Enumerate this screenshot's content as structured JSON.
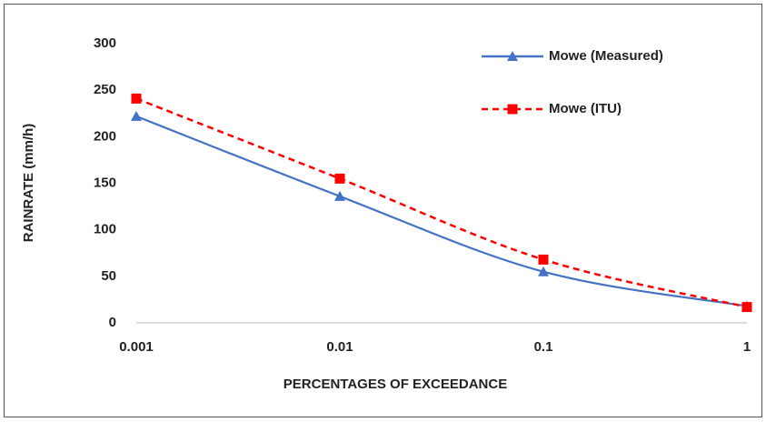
{
  "chart_data": {
    "type": "line",
    "x_label": "PERCENTAGES OF EXCEEDANCE",
    "y_label": "RAINRATE (mm/h)",
    "x": [
      0.001,
      0.01,
      0.1,
      1
    ],
    "xscale": "log",
    "xlim": [
      0.001,
      1
    ],
    "xticks": [
      0.001,
      0.01,
      0.1,
      1
    ],
    "ylim": [
      0,
      300
    ],
    "yticks": [
      0,
      50,
      100,
      150,
      200,
      250,
      300
    ],
    "grid": false,
    "legend": "upper right",
    "series": [
      {
        "name": "Mowe (Measured)",
        "color": "#4472c4",
        "marker": "triangle",
        "dash": "solid",
        "values": [
          222,
          136,
          55,
          18
        ]
      },
      {
        "name": "Mowe (ITU)",
        "color": "#ff0000",
        "marker": "square",
        "dash": "dashed",
        "values": [
          241,
          155,
          68,
          17
        ]
      }
    ]
  }
}
